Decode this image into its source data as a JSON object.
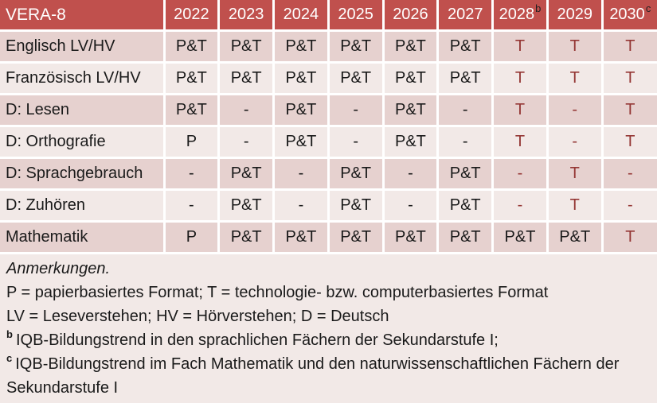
{
  "colors": {
    "header_bg": "#C0504D",
    "header_text": "#FFFFFF",
    "row_dark_bg": "#E6D1CF",
    "row_light_bg": "#F2E9E7",
    "notes_bg": "#F2E9E7",
    "accent_text": "#943634",
    "body_text": "#1A1A1A",
    "grid_gap": "#FFFFFF"
  },
  "table": {
    "title": "VERA-8",
    "years": [
      {
        "label": "2022",
        "sup": ""
      },
      {
        "label": "2023",
        "sup": ""
      },
      {
        "label": "2024",
        "sup": ""
      },
      {
        "label": "2025",
        "sup": ""
      },
      {
        "label": "2026",
        "sup": ""
      },
      {
        "label": "2027",
        "sup": ""
      },
      {
        "label": "2028",
        "sup": "b"
      },
      {
        "label": "2029",
        "sup": ""
      },
      {
        "label": "2030",
        "sup": "c"
      }
    ],
    "rows": [
      {
        "label": "Englisch LV/HV",
        "shade": "dark",
        "cells": [
          {
            "v": "P&T",
            "red": false
          },
          {
            "v": "P&T",
            "red": false
          },
          {
            "v": "P&T",
            "red": false
          },
          {
            "v": "P&T",
            "red": false
          },
          {
            "v": "P&T",
            "red": false
          },
          {
            "v": "P&T",
            "red": false
          },
          {
            "v": "T",
            "red": true
          },
          {
            "v": "T",
            "red": true
          },
          {
            "v": "T",
            "red": true
          }
        ]
      },
      {
        "label": "Französisch LV/HV",
        "shade": "light",
        "cells": [
          {
            "v": "P&T",
            "red": false
          },
          {
            "v": "P&T",
            "red": false
          },
          {
            "v": "P&T",
            "red": false
          },
          {
            "v": "P&T",
            "red": false
          },
          {
            "v": "P&T",
            "red": false
          },
          {
            "v": "P&T",
            "red": false
          },
          {
            "v": "T",
            "red": true
          },
          {
            "v": "T",
            "red": true
          },
          {
            "v": "T",
            "red": true
          }
        ]
      },
      {
        "label": "D: Lesen",
        "shade": "dark",
        "cells": [
          {
            "v": "P&T",
            "red": false
          },
          {
            "v": "-",
            "red": false
          },
          {
            "v": "P&T",
            "red": false
          },
          {
            "v": "-",
            "red": false
          },
          {
            "v": "P&T",
            "red": false
          },
          {
            "v": "-",
            "red": false
          },
          {
            "v": "T",
            "red": true
          },
          {
            "v": "-",
            "red": true
          },
          {
            "v": "T",
            "red": true
          }
        ]
      },
      {
        "label": "D: Orthografie",
        "shade": "light",
        "cells": [
          {
            "v": "P",
            "red": false
          },
          {
            "v": "-",
            "red": false
          },
          {
            "v": "P&T",
            "red": false
          },
          {
            "v": "-",
            "red": false
          },
          {
            "v": "P&T",
            "red": false
          },
          {
            "v": "-",
            "red": false
          },
          {
            "v": "T",
            "red": true
          },
          {
            "v": "-",
            "red": true
          },
          {
            "v": "T",
            "red": true
          }
        ]
      },
      {
        "label": "D: Sprachgebrauch",
        "shade": "dark",
        "cells": [
          {
            "v": "-",
            "red": false
          },
          {
            "v": "P&T",
            "red": false
          },
          {
            "v": "-",
            "red": false
          },
          {
            "v": "P&T",
            "red": false
          },
          {
            "v": "-",
            "red": false
          },
          {
            "v": "P&T",
            "red": false
          },
          {
            "v": "-",
            "red": true
          },
          {
            "v": "T",
            "red": true
          },
          {
            "v": "-",
            "red": true
          }
        ]
      },
      {
        "label": "D: Zuhören",
        "shade": "light",
        "cells": [
          {
            "v": "-",
            "red": false
          },
          {
            "v": "P&T",
            "red": false
          },
          {
            "v": "-",
            "red": false
          },
          {
            "v": "P&T",
            "red": false
          },
          {
            "v": "-",
            "red": false
          },
          {
            "v": "P&T",
            "red": false
          },
          {
            "v": "-",
            "red": true
          },
          {
            "v": "T",
            "red": true
          },
          {
            "v": "-",
            "red": true
          }
        ]
      },
      {
        "label": "Mathematik",
        "shade": "dark",
        "cells": [
          {
            "v": "P",
            "red": false
          },
          {
            "v": "P&T",
            "red": false
          },
          {
            "v": "P&T",
            "red": false
          },
          {
            "v": "P&T",
            "red": false
          },
          {
            "v": "P&T",
            "red": false
          },
          {
            "v": "P&T",
            "red": false
          },
          {
            "v": "P&T",
            "red": false
          },
          {
            "v": "P&T",
            "red": false
          },
          {
            "v": "T",
            "red": true
          }
        ]
      }
    ]
  },
  "notes": {
    "lines": [
      {
        "sup": "",
        "text": "Anmerkungen.",
        "italic": true
      },
      {
        "sup": "",
        "text": "P = papierbasiertes Format; T = technologie- bzw. computerbasiertes Format",
        "italic": false
      },
      {
        "sup": "",
        "text": "LV = Leseverstehen; HV = Hörverstehen; D = Deutsch",
        "italic": false
      },
      {
        "sup": "b",
        "text": "IQB-Bildungstrend in den sprachlichen Fächern der Sekundarstufe I;",
        "italic": false
      },
      {
        "sup": "c",
        "text": "IQB-Bildungstrend im Fach Mathematik und den naturwissenschaftlichen Fächern der Sekundarstufe I",
        "italic": false
      }
    ]
  }
}
